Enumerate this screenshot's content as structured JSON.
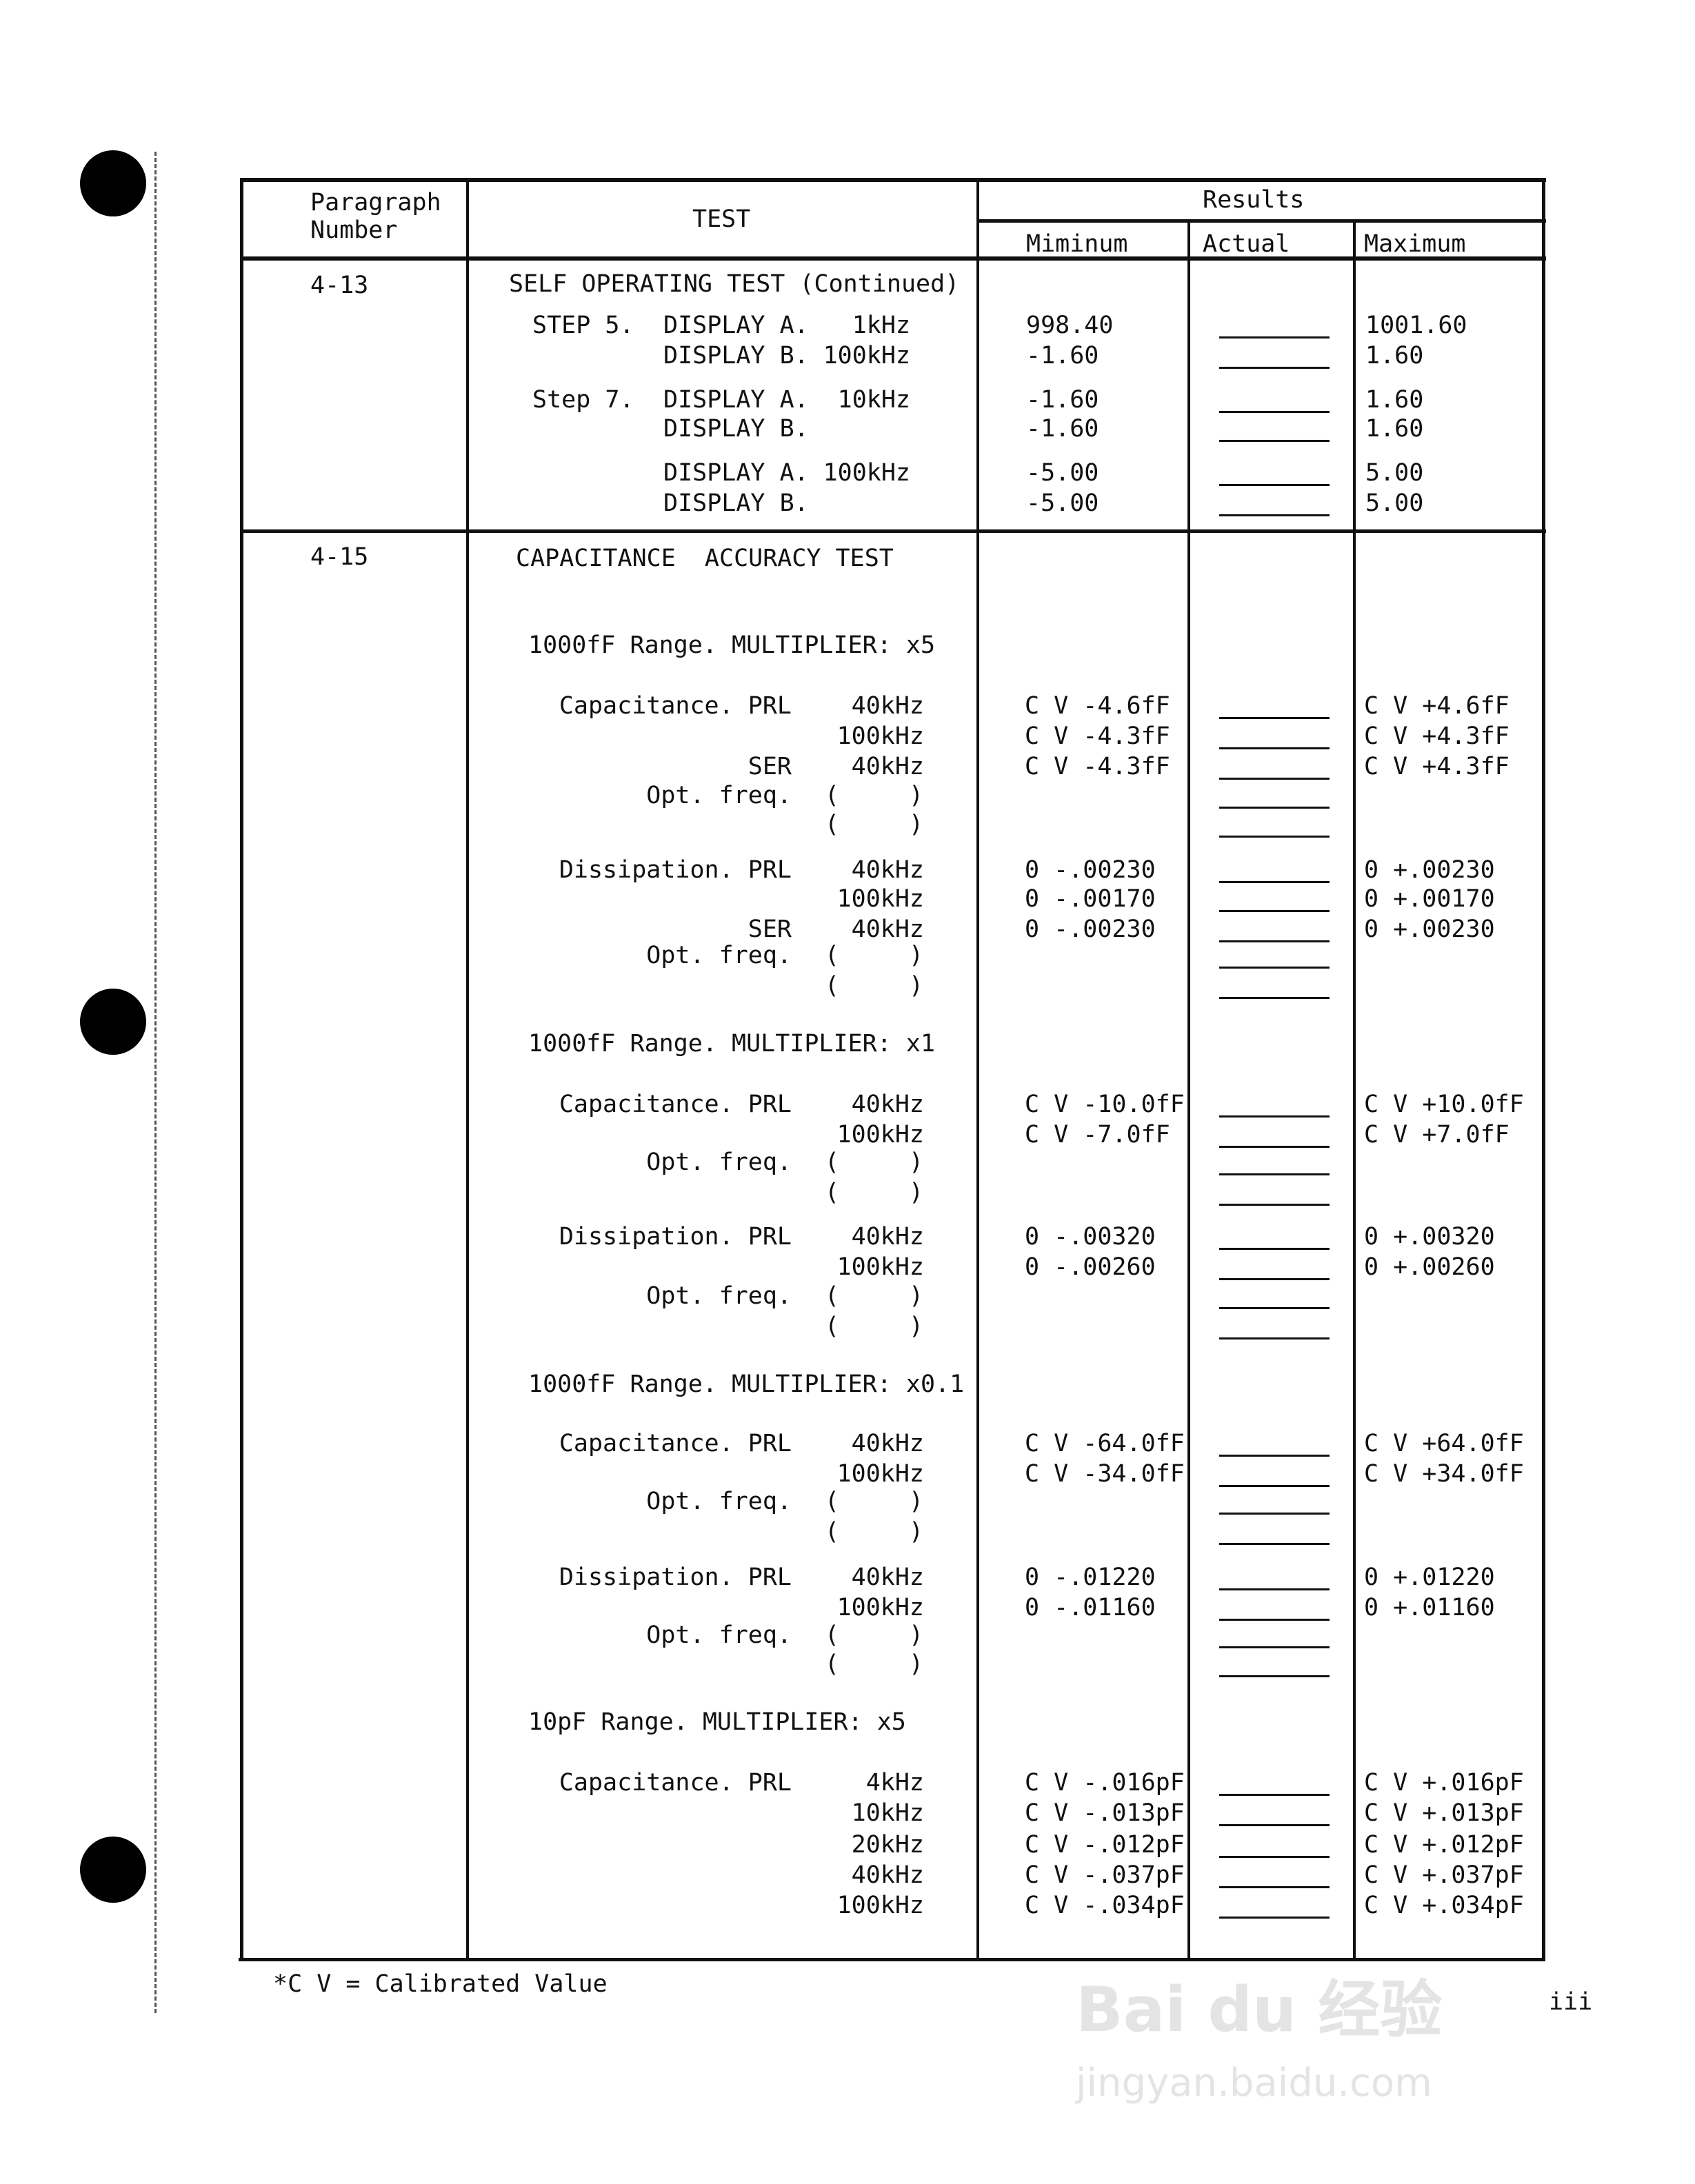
{
  "header": {
    "paragraph_number": "Paragraph\nNumber",
    "test": "TEST",
    "results": "Results",
    "minimum": "Miminum",
    "actual": "Actual",
    "maximum": "Maximum"
  },
  "sections": [
    {
      "paragraph": "4-13",
      "title": "SELF OPERATING TEST (Continued)",
      "rows": [
        {
          "step": "STEP 5.",
          "label": "DISPLAY A.",
          "freq": "1kHz",
          "min": "998.40",
          "max": "1001.60"
        },
        {
          "step": "",
          "label": "DISPLAY B.",
          "freq": "100kHz",
          "min": "-1.60",
          "max": "1.60"
        },
        {
          "step": "Step 7.",
          "label": "DISPLAY A.",
          "freq": "10kHz",
          "min": "-1.60",
          "max": "1.60"
        },
        {
          "step": "",
          "label": "DISPLAY B.",
          "freq": "",
          "min": "-1.60",
          "max": "1.60"
        },
        {
          "step": "",
          "label": "DISPLAY A.",
          "freq": "100kHz",
          "min": "-5.00",
          "max": "5.00"
        },
        {
          "step": "",
          "label": "DISPLAY B.",
          "freq": "",
          "min": "-5.00",
          "max": "5.00"
        }
      ]
    },
    {
      "paragraph": "4-15",
      "title": "CAPACITANCE  ACCURACY TEST",
      "groups": [
        {
          "heading": "1000fF Range. MULTIPLIER: x5",
          "rows": [
            {
              "label": "Capacitance. PRL",
              "freq": "40kHz",
              "min": "C V -4.6fF",
              "max": "C V +4.6fF"
            },
            {
              "label": "",
              "freq": "100kHz",
              "min": "C V -4.3fF",
              "max": "C V +4.3fF"
            },
            {
              "label": "SER",
              "freq": "40kHz",
              "min": "C V -4.3fF",
              "max": "C V +4.3fF"
            },
            {
              "label": "Opt. freq.",
              "freq": "( )",
              "min": "",
              "max": ""
            },
            {
              "label": "",
              "freq": "( )",
              "min": "",
              "max": ""
            },
            {
              "label": "Dissipation. PRL",
              "freq": "40kHz",
              "min": "0 -.00230",
              "max": "0 +.00230"
            },
            {
              "label": "",
              "freq": "100kHz",
              "min": "0 -.00170",
              "max": "0 +.00170"
            },
            {
              "label": "SER",
              "freq": "40kHz",
              "min": "0 -.00230",
              "max": "0 +.00230"
            },
            {
              "label": "Opt. freq.",
              "freq": "( )",
              "min": "",
              "max": ""
            },
            {
              "label": "",
              "freq": "( )",
              "min": "",
              "max": ""
            }
          ]
        },
        {
          "heading": "1000fF Range. MULTIPLIER: x1",
          "rows": [
            {
              "label": "Capacitance. PRL",
              "freq": "40kHz",
              "min": "C V -10.0fF",
              "max": "C V +10.0fF"
            },
            {
              "label": "",
              "freq": "100kHz",
              "min": "C V -7.0fF",
              "max": "C V +7.0fF"
            },
            {
              "label": "Opt. freq.",
              "freq": "( )",
              "min": "",
              "max": ""
            },
            {
              "label": "",
              "freq": "( )",
              "min": "",
              "max": ""
            },
            {
              "label": "Dissipation. PRL",
              "freq": "40kHz",
              "min": "0 -.00320",
              "max": "0 +.00320"
            },
            {
              "label": "",
              "freq": "100kHz",
              "min": "0 -.00260",
              "max": "0 +.00260"
            },
            {
              "label": "Opt. freq.",
              "freq": "( )",
              "min": "",
              "max": ""
            },
            {
              "label": "",
              "freq": "( )",
              "min": "",
              "max": ""
            }
          ]
        },
        {
          "heading": "1000fF Range. MULTIPLIER: x0.1",
          "rows": [
            {
              "label": "Capacitance. PRL",
              "freq": "40kHz",
              "min": "C V -64.0fF",
              "max": "C V +64.0fF"
            },
            {
              "label": "",
              "freq": "100kHz",
              "min": "C V -34.0fF",
              "max": "C V +34.0fF"
            },
            {
              "label": "Opt. freq.",
              "freq": "( )",
              "min": "",
              "max": ""
            },
            {
              "label": "",
              "freq": "( )",
              "min": "",
              "max": ""
            },
            {
              "label": "Dissipation. PRL",
              "freq": "40kHz",
              "min": "0 -.01220",
              "max": "0 +.01220"
            },
            {
              "label": "",
              "freq": "100kHz",
              "min": "0 -.01160",
              "max": "0 +.01160"
            },
            {
              "label": "Opt. freq.",
              "freq": "( )",
              "min": "",
              "max": ""
            },
            {
              "label": "",
              "freq": "( )",
              "min": "",
              "max": ""
            }
          ]
        },
        {
          "heading": "10pF Range. MULTIPLIER: x5",
          "rows": [
            {
              "label": "Capacitance. PRL",
              "freq": "4kHz",
              "min": "C V -.016pF",
              "max": "C V +.016pF"
            },
            {
              "label": "",
              "freq": "10kHz",
              "min": "C V -.013pF",
              "max": "C V +.013pF"
            },
            {
              "label": "",
              "freq": "20kHz",
              "min": "C V -.012pF",
              "max": "C V +.012pF"
            },
            {
              "label": "",
              "freq": "40kHz",
              "min": "C V -.037pF",
              "max": "C V +.037pF"
            },
            {
              "label": "",
              "freq": "100kHz",
              "min": "C V -.034pF",
              "max": "C V +.034pF"
            }
          ]
        }
      ]
    }
  ],
  "footnote": "*C V = Calibrated Value",
  "page_number": "iii",
  "watermark": {
    "logo": "Bai du 经验",
    "url": "jingyan.baidu.com"
  }
}
